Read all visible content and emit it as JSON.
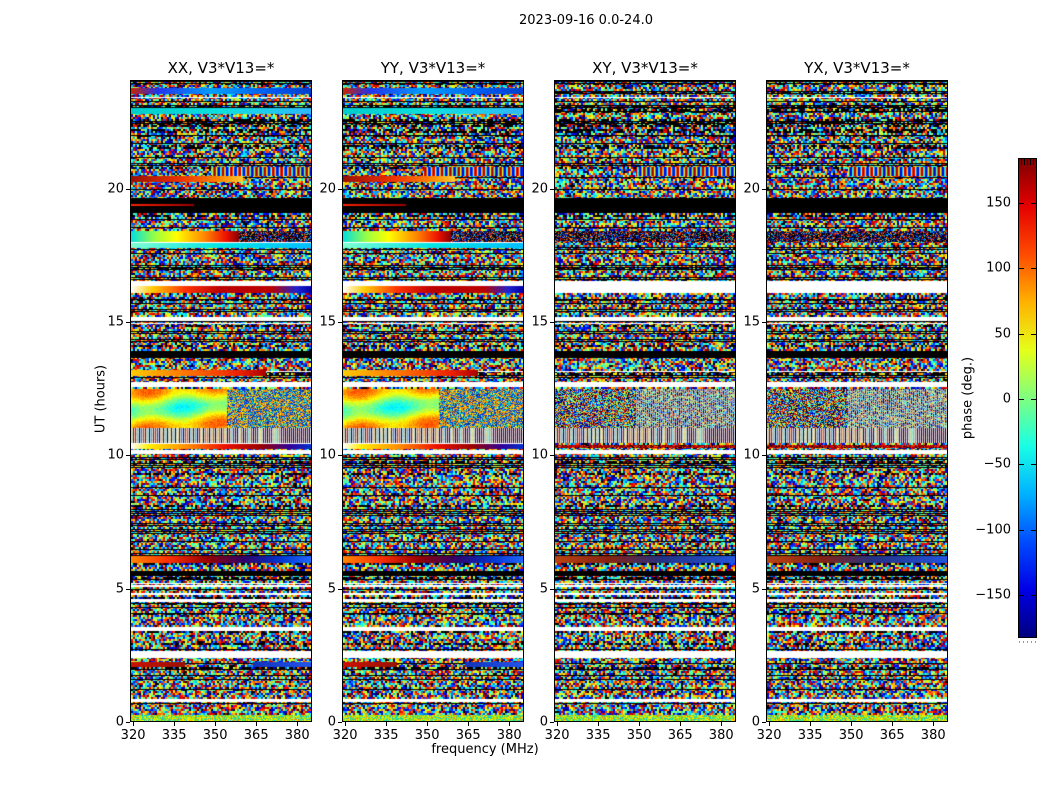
{
  "figure": {
    "title": "2023-09-16 0.0-24.0",
    "background": "#ffffff",
    "text_color": "#000000"
  },
  "chart_data": {
    "type": "heatmap",
    "title": "2023-09-16 0.0-24.0",
    "xlabel": "frequency (MHz)",
    "ylabel": "UT (hours)",
    "x_ticks": [
      320,
      335,
      350,
      365,
      380
    ],
    "x_tick_labels": [
      "320",
      "335",
      "350",
      "365",
      "380"
    ],
    "x_range": [
      319.6,
      385.4
    ],
    "y_ticks": [
      0,
      5,
      10,
      15,
      20
    ],
    "y_tick_labels": [
      "0",
      "5",
      "10",
      "15",
      "20"
    ],
    "y_range": [
      0,
      24
    ],
    "grid": false,
    "legend": false,
    "panels": [
      {
        "title": "XX, V3*V13=*",
        "seed": 1
      },
      {
        "title": "YY, V3*V13=*",
        "seed": 2
      },
      {
        "title": "XY, V3*V13=*",
        "seed": 3
      },
      {
        "title": "YX, V3*V13=*",
        "seed": 4
      }
    ],
    "colorbar": {
      "label": "phase (deg.)",
      "colormap": "jet",
      "range": [
        -183,
        183
      ],
      "ticks": [
        150,
        100,
        50,
        0,
        -50,
        -100,
        -150
      ],
      "tick_labels": [
        "150",
        "100",
        "50",
        "0",
        "−50",
        "−100",
        "−150"
      ]
    },
    "bands": [
      {
        "ut": [
          23.5,
          23.72
        ],
        "panels": [
          0,
          1
        ],
        "type": "gradient",
        "x": [
          0,
          1
        ],
        "stops": [
          [
            0,
            "#cc2200"
          ],
          [
            0.15,
            "#2233ee"
          ],
          [
            0.45,
            "#00a0ff"
          ],
          [
            0.8,
            "#0055ee"
          ],
          [
            1,
            "#0040cc"
          ]
        ]
      },
      {
        "ut": [
          22.78,
          22.98
        ],
        "panels": [
          0,
          1
        ],
        "type": "gradient",
        "x": [
          0,
          1
        ],
        "stops": [
          [
            0,
            "#00cccc"
          ],
          [
            0.5,
            "#10e0e0"
          ],
          [
            1,
            "#30b8f8"
          ]
        ]
      },
      {
        "ut": [
          20.42,
          20.78
        ],
        "panels": [
          0,
          1,
          2,
          3
        ],
        "type": "zebra",
        "x": [
          0.45,
          1
        ]
      },
      {
        "ut": [
          20.22,
          20.42
        ],
        "panels": [
          0,
          1
        ],
        "type": "gradient",
        "x": [
          0,
          0.62
        ],
        "stops": [
          [
            0,
            "#991100"
          ],
          [
            0.45,
            "#ee3300"
          ],
          [
            0.8,
            "#ff8800"
          ],
          [
            1,
            "#ffcc33"
          ]
        ]
      },
      {
        "ut": [
          19.05,
          19.6
        ],
        "panels": [
          0,
          1,
          2,
          3
        ],
        "type": "black",
        "x": [
          0,
          1
        ]
      },
      {
        "ut": [
          19.3,
          19.38
        ],
        "panels": [
          0,
          1
        ],
        "type": "gradient",
        "x": [
          0,
          0.35
        ],
        "stops": [
          [
            0,
            "#ff2200"
          ],
          [
            1,
            "#990000"
          ]
        ]
      },
      {
        "ut": [
          17.98,
          18.38
        ],
        "panels": [
          0,
          1
        ],
        "type": "gradient",
        "x": [
          0,
          0.6
        ],
        "stops": [
          [
            0,
            "#00e0e0"
          ],
          [
            0.22,
            "#99ff44"
          ],
          [
            0.42,
            "#ffff00"
          ],
          [
            0.68,
            "#ff8800"
          ],
          [
            0.88,
            "#ee1100"
          ],
          [
            1,
            "#880000"
          ]
        ]
      },
      {
        "ut": [
          17.98,
          18.38
        ],
        "panels": [
          0,
          1
        ],
        "type": "dark_noise",
        "x": [
          0.6,
          1
        ]
      },
      {
        "ut": [
          17.98,
          18.38
        ],
        "panels": [
          2,
          3
        ],
        "type": "dark_noise",
        "x": [
          0,
          1
        ]
      },
      {
        "ut": [
          17.92,
          17.98
        ],
        "panels": [
          0,
          1
        ],
        "type": "white",
        "x": [
          0,
          1
        ]
      },
      {
        "ut": [
          17.72,
          17.92
        ],
        "panels": [
          0,
          1
        ],
        "type": "gradient",
        "x": [
          0,
          1
        ],
        "stops": [
          [
            0,
            "#7fffd4"
          ],
          [
            0.5,
            "#00e5e5"
          ],
          [
            1,
            "#00bfff"
          ]
        ]
      },
      {
        "ut": [
          16.32,
          16.5
        ],
        "panels": [
          0,
          1,
          2,
          3
        ],
        "type": "white",
        "x": [
          0,
          1
        ]
      },
      {
        "ut": [
          16.05,
          16.3
        ],
        "panels": [
          0,
          1
        ],
        "type": "gradient",
        "x": [
          0,
          1
        ],
        "stops": [
          [
            0,
            "#ffffff"
          ],
          [
            0.12,
            "#ffcc00"
          ],
          [
            0.3,
            "#ff3300"
          ],
          [
            0.5,
            "#bb0000"
          ],
          [
            0.78,
            "#bb0000"
          ],
          [
            0.92,
            "#2222cc"
          ],
          [
            1,
            "#0000aa"
          ]
        ]
      },
      {
        "ut": [
          16.05,
          16.3
        ],
        "panels": [
          2,
          3
        ],
        "type": "white",
        "x": [
          0,
          1
        ]
      },
      {
        "ut": [
          15.0,
          15.14
        ],
        "panels": [
          0,
          1,
          2,
          3
        ],
        "type": "white",
        "x": [
          0,
          1
        ]
      },
      {
        "ut": [
          13.62,
          13.85
        ],
        "panels": [
          0,
          1,
          2,
          3
        ],
        "type": "black",
        "x": [
          0,
          1
        ]
      },
      {
        "ut": [
          12.92,
          13.18
        ],
        "panels": [
          0,
          1
        ],
        "type": "gradient",
        "x": [
          0,
          0.75
        ],
        "stops": [
          [
            0,
            "#ffcc00"
          ],
          [
            0.4,
            "#ff7700"
          ],
          [
            0.8,
            "#ee2200"
          ],
          [
            1,
            "#aa0000"
          ]
        ]
      },
      {
        "ut": [
          12.52,
          12.7
        ],
        "panels": [
          0,
          1,
          2,
          3
        ],
        "type": "white",
        "x": [
          0,
          1
        ]
      },
      {
        "ut": [
          11.0,
          12.44
        ],
        "panels": [
          0,
          1
        ],
        "type": "smooth",
        "x": [
          0,
          1
        ]
      },
      {
        "ut": [
          11.0,
          12.44
        ],
        "panels": [
          2,
          3
        ],
        "type": "dither_moire",
        "x": [
          0,
          1
        ]
      },
      {
        "ut": [
          10.44,
          11.0
        ],
        "panels": [
          0,
          1,
          2,
          3
        ],
        "type": "moire",
        "x": [
          0,
          1
        ]
      },
      {
        "ut": [
          10.38,
          10.44
        ],
        "panels": [
          0,
          1
        ],
        "type": "white",
        "x": [
          0,
          1
        ]
      },
      {
        "ut": [
          10.2,
          10.38
        ],
        "panels": [
          0,
          1
        ],
        "type": "gradient",
        "x": [
          0,
          1
        ],
        "stops": [
          [
            0,
            "#ffffff"
          ],
          [
            0.1,
            "#ffee00"
          ],
          [
            0.32,
            "#ff8800"
          ],
          [
            0.52,
            "#ee1100"
          ],
          [
            0.72,
            "#990000"
          ],
          [
            0.88,
            "#330099"
          ],
          [
            1,
            "#0033cc"
          ]
        ]
      },
      {
        "ut": [
          10.22,
          10.34
        ],
        "panels": [
          2,
          3
        ],
        "type": "red_noise",
        "x": [
          0,
          1
        ]
      },
      {
        "ut": [
          10.02,
          10.15
        ],
        "panels": [
          0,
          1,
          2,
          3
        ],
        "type": "white",
        "x": [
          0,
          1
        ]
      },
      {
        "ut": [
          5.92,
          6.2
        ],
        "panels": [
          0,
          1
        ],
        "type": "gradient",
        "x": [
          0,
          1
        ],
        "stops": [
          [
            0,
            "#ff8800"
          ],
          [
            0.2,
            "#ff3300"
          ],
          [
            0.42,
            "#990000"
          ],
          [
            0.62,
            "#330066"
          ],
          [
            0.82,
            "#0033cc"
          ],
          [
            1,
            "#2266ff"
          ]
        ]
      },
      {
        "ut": [
          5.92,
          6.2
        ],
        "panels": [
          2,
          3
        ],
        "type": "gradient",
        "x": [
          0,
          1
        ],
        "stops": [
          [
            0,
            "#bb4411"
          ],
          [
            0.3,
            "#882211"
          ],
          [
            0.6,
            "#223388"
          ],
          [
            1,
            "#2255dd"
          ]
        ]
      },
      {
        "ut": [
          5.45,
          5.62
        ],
        "panels": [
          0,
          1,
          2,
          3
        ],
        "type": "black",
        "x": [
          0,
          1
        ]
      },
      {
        "ut": [
          5.02,
          5.1
        ],
        "panels": [
          0,
          1,
          2,
          3
        ],
        "type": "white",
        "x": [
          0,
          1
        ]
      },
      {
        "ut": [
          4.72,
          4.8
        ],
        "panels": [
          0,
          1,
          2,
          3
        ],
        "type": "white",
        "x": [
          0,
          1
        ]
      },
      {
        "ut": [
          4.48,
          4.56
        ],
        "panels": [
          0,
          1,
          2,
          3
        ],
        "type": "white",
        "x": [
          0,
          1
        ]
      },
      {
        "ut": [
          3.38,
          3.52
        ],
        "panels": [
          0,
          1,
          2,
          3
        ],
        "type": "white",
        "x": [
          0,
          1
        ]
      },
      {
        "ut": [
          2.38,
          2.62
        ],
        "panels": [
          0,
          1,
          2,
          3
        ],
        "type": "white",
        "x": [
          0,
          1
        ]
      },
      {
        "ut": [
          2.02,
          2.2
        ],
        "panels": [
          0,
          1
        ],
        "type": "gradient",
        "x": [
          0,
          0.3
        ],
        "stops": [
          [
            0,
            "#cc1100"
          ],
          [
            1,
            "#991100"
          ]
        ]
      },
      {
        "ut": [
          2.02,
          2.2
        ],
        "panels": [
          0,
          1
        ],
        "type": "gradient",
        "x": [
          0.68,
          1
        ],
        "stops": [
          [
            0,
            "#1133bb"
          ],
          [
            1,
            "#2255ee"
          ]
        ]
      },
      {
        "ut": [
          0.7,
          0.82
        ],
        "panels": [
          0,
          1,
          2,
          3
        ],
        "type": "white",
        "x": [
          0,
          1
        ]
      },
      {
        "ut": [
          0.0,
          0.22
        ],
        "panels": [
          0,
          1,
          2,
          3
        ],
        "type": "bright_noise",
        "x": [
          0,
          1
        ]
      }
    ]
  }
}
